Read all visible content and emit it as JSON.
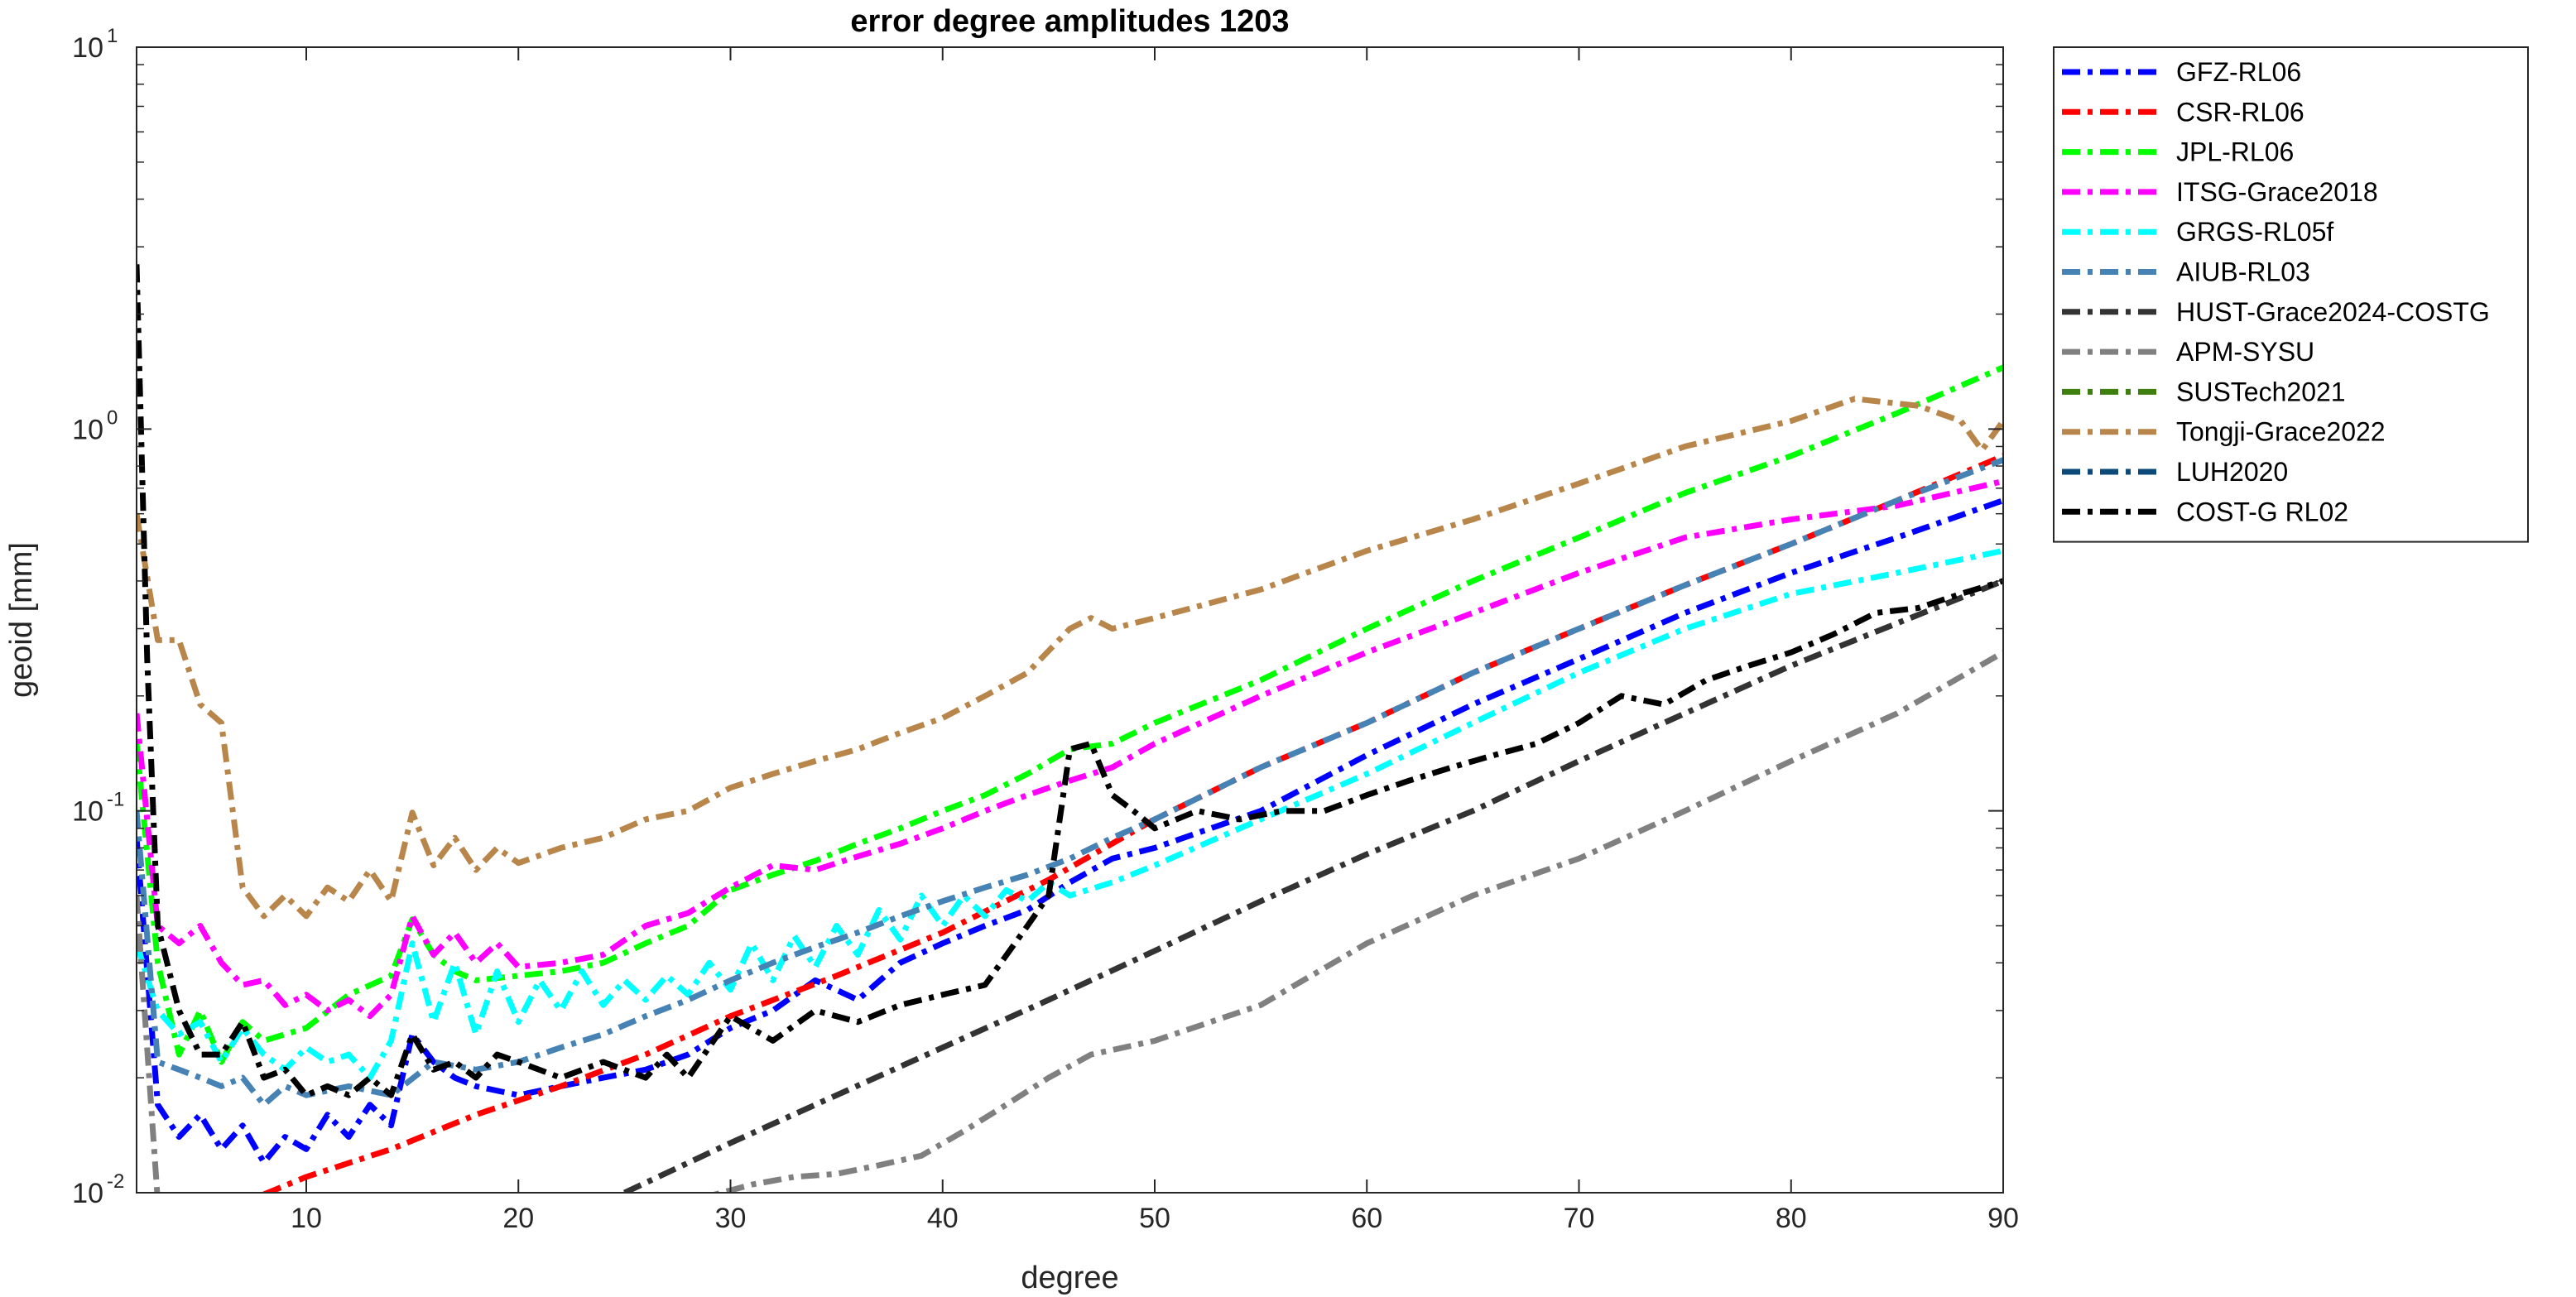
{
  "chart_data": {
    "type": "line",
    "title": "error degree amplitudes 1203",
    "xlabel": "degree",
    "ylabel": "geoid [mm]",
    "xlim": [
      2,
      90
    ],
    "ylim": [
      0.01,
      10
    ],
    "yscale": "log",
    "grid": false,
    "legend_position": "outside-top-right",
    "x_ticks": [
      10,
      20,
      30,
      40,
      50,
      60,
      70,
      80,
      90
    ],
    "y_ticks": [
      {
        "base": "10",
        "exp": "-2",
        "value": 0.01
      },
      {
        "base": "10",
        "exp": "-1",
        "value": 0.1
      },
      {
        "base": "10",
        "exp": "0",
        "value": 1
      },
      {
        "base": "10",
        "exp": "1",
        "value": 10
      }
    ],
    "series": [
      {
        "name": "GFZ-RL06",
        "color": "#0000ff",
        "dash": "dashdot",
        "x": [
          2,
          3,
          4,
          5,
          6,
          7,
          8,
          9,
          10,
          11,
          12,
          13,
          14,
          15,
          16,
          17,
          18,
          20,
          22,
          24,
          26,
          28,
          30,
          32,
          34,
          36,
          38,
          40,
          42,
          44,
          46,
          48,
          50,
          55,
          60,
          65,
          70,
          75,
          80,
          85,
          90
        ],
        "y": [
          0.085,
          0.017,
          0.014,
          0.016,
          0.013,
          0.015,
          0.012,
          0.014,
          0.013,
          0.016,
          0.014,
          0.017,
          0.015,
          0.026,
          0.022,
          0.02,
          0.019,
          0.018,
          0.019,
          0.02,
          0.021,
          0.023,
          0.027,
          0.03,
          0.036,
          0.032,
          0.04,
          0.045,
          0.05,
          0.055,
          0.065,
          0.075,
          0.08,
          0.1,
          0.14,
          0.19,
          0.25,
          0.33,
          0.42,
          0.52,
          0.65
        ]
      },
      {
        "name": "CSR-RL06",
        "color": "#ff0000",
        "dash": "dashdot",
        "x": [
          8,
          10,
          14,
          18,
          22,
          26,
          30,
          35,
          40,
          45,
          50,
          55,
          60,
          65,
          70,
          75,
          80,
          85,
          90
        ],
        "y": [
          0.0099,
          0.011,
          0.013,
          0.016,
          0.019,
          0.023,
          0.029,
          0.037,
          0.048,
          0.066,
          0.095,
          0.13,
          0.17,
          0.23,
          0.3,
          0.39,
          0.5,
          0.65,
          0.85
        ]
      },
      {
        "name": "JPL-RL06",
        "color": "#00ff00",
        "dash": "dashdot",
        "x": [
          2,
          3,
          4,
          5,
          6,
          7,
          8,
          9,
          10,
          12,
          14,
          15,
          16,
          17,
          18,
          20,
          22,
          24,
          26,
          28,
          30,
          32,
          34,
          36,
          38,
          40,
          42,
          44,
          46,
          48,
          50,
          55,
          60,
          65,
          70,
          75,
          80,
          85,
          90
        ],
        "y": [
          0.15,
          0.04,
          0.023,
          0.03,
          0.022,
          0.028,
          0.025,
          0.026,
          0.027,
          0.033,
          0.037,
          0.052,
          0.042,
          0.038,
          0.036,
          0.037,
          0.038,
          0.04,
          0.045,
          0.05,
          0.062,
          0.068,
          0.074,
          0.082,
          0.09,
          0.1,
          0.11,
          0.125,
          0.145,
          0.15,
          0.17,
          0.22,
          0.3,
          0.4,
          0.52,
          0.68,
          0.85,
          1.1,
          1.45
        ]
      },
      {
        "name": "ITSG-Grace2018",
        "color": "#ff00ff",
        "dash": "dashdot",
        "x": [
          2,
          3,
          4,
          5,
          6,
          7,
          8,
          9,
          10,
          11,
          12,
          13,
          14,
          15,
          16,
          17,
          18,
          19,
          20,
          22,
          24,
          26,
          28,
          30,
          32,
          34,
          36,
          38,
          40,
          42,
          44,
          46,
          48,
          50,
          55,
          60,
          65,
          70,
          75,
          80,
          85,
          90
        ],
        "y": [
          0.18,
          0.05,
          0.045,
          0.05,
          0.04,
          0.035,
          0.036,
          0.031,
          0.033,
          0.03,
          0.032,
          0.029,
          0.033,
          0.053,
          0.042,
          0.048,
          0.04,
          0.045,
          0.039,
          0.04,
          0.042,
          0.05,
          0.054,
          0.063,
          0.072,
          0.07,
          0.076,
          0.082,
          0.09,
          0.1,
          0.11,
          0.12,
          0.13,
          0.15,
          0.2,
          0.26,
          0.33,
          0.42,
          0.52,
          0.58,
          0.63,
          0.73
        ]
      },
      {
        "name": "GRGS-RL05f",
        "color": "#00ffff",
        "dash": "dashdot",
        "x": [
          2,
          3,
          4,
          5,
          6,
          7,
          8,
          9,
          10,
          11,
          12,
          13,
          14,
          15,
          16,
          17,
          18,
          19,
          20,
          21,
          22,
          23,
          24,
          25,
          26,
          27,
          28,
          29,
          30,
          31,
          32,
          33,
          34,
          35,
          36,
          37,
          38,
          39,
          40,
          41,
          42,
          43,
          44,
          45,
          46,
          48,
          50,
          55,
          60,
          65,
          70,
          75,
          80,
          85,
          90
        ],
        "y": [
          0.045,
          0.03,
          0.026,
          0.028,
          0.022,
          0.027,
          0.023,
          0.021,
          0.024,
          0.022,
          0.023,
          0.02,
          0.025,
          0.045,
          0.028,
          0.04,
          0.026,
          0.038,
          0.028,
          0.036,
          0.03,
          0.038,
          0.031,
          0.036,
          0.032,
          0.037,
          0.033,
          0.04,
          0.034,
          0.045,
          0.036,
          0.047,
          0.039,
          0.05,
          0.042,
          0.055,
          0.046,
          0.06,
          0.05,
          0.06,
          0.053,
          0.062,
          0.058,
          0.065,
          0.06,
          0.065,
          0.072,
          0.095,
          0.125,
          0.17,
          0.23,
          0.3,
          0.37,
          0.42,
          0.48
        ]
      },
      {
        "name": "AIUB-RL03",
        "color": "#4682b4",
        "dash": "dashdot",
        "x": [
          2,
          3,
          4,
          5,
          6,
          7,
          8,
          9,
          10,
          12,
          14,
          16,
          18,
          20,
          22,
          24,
          26,
          28,
          30,
          32,
          34,
          36,
          38,
          40,
          42,
          44,
          46,
          48,
          50,
          55,
          60,
          65,
          70,
          75,
          80,
          85,
          90
        ],
        "y": [
          0.1,
          0.022,
          0.021,
          0.02,
          0.019,
          0.02,
          0.017,
          0.019,
          0.018,
          0.019,
          0.018,
          0.022,
          0.021,
          0.022,
          0.024,
          0.026,
          0.029,
          0.032,
          0.036,
          0.04,
          0.044,
          0.048,
          0.053,
          0.058,
          0.063,
          0.068,
          0.075,
          0.085,
          0.095,
          0.13,
          0.17,
          0.23,
          0.3,
          0.39,
          0.5,
          0.65,
          0.83
        ]
      },
      {
        "name": "HUST-Grace2024-COSTG",
        "color": "#333333",
        "dash": "dashdot",
        "x": [
          25,
          30,
          35,
          40,
          45,
          50,
          55,
          60,
          65,
          70,
          75,
          80,
          85,
          90
        ],
        "y": [
          0.01,
          0.0135,
          0.018,
          0.024,
          0.032,
          0.043,
          0.058,
          0.077,
          0.1,
          0.135,
          0.18,
          0.24,
          0.31,
          0.4
        ]
      },
      {
        "name": "APM-SYSU",
        "color": "#808080",
        "dash": "dashdot",
        "x": [
          2,
          3,
          29,
          31,
          33,
          35,
          37,
          39,
          41,
          43,
          45,
          47,
          50,
          55,
          60,
          65,
          70,
          75,
          80,
          85,
          90
        ],
        "y": [
          0.06,
          0.0095,
          0.0098,
          0.0105,
          0.011,
          0.0112,
          0.0118,
          0.0125,
          0.0145,
          0.017,
          0.02,
          0.023,
          0.025,
          0.031,
          0.045,
          0.06,
          0.075,
          0.1,
          0.135,
          0.18,
          0.26
        ]
      },
      {
        "name": "SUSTech2021",
        "color": "#3f7f0f",
        "dash": "dashdot",
        "x": [],
        "y": []
      },
      {
        "name": "Tongji-Grace2022",
        "color": "#b8864b",
        "dash": "dashdot",
        "x": [
          2,
          3,
          4,
          5,
          6,
          7,
          8,
          9,
          10,
          11,
          12,
          13,
          14,
          15,
          16,
          17,
          18,
          19,
          20,
          22,
          24,
          26,
          28,
          30,
          32,
          34,
          36,
          38,
          40,
          42,
          44,
          46,
          47,
          48,
          50,
          55,
          60,
          65,
          70,
          75,
          80,
          83,
          86,
          88,
          89,
          90
        ],
        "y": [
          0.6,
          0.28,
          0.28,
          0.19,
          0.17,
          0.063,
          0.053,
          0.06,
          0.053,
          0.063,
          0.058,
          0.07,
          0.058,
          0.099,
          0.072,
          0.085,
          0.07,
          0.08,
          0.073,
          0.08,
          0.085,
          0.095,
          0.1,
          0.115,
          0.125,
          0.135,
          0.145,
          0.16,
          0.175,
          0.2,
          0.23,
          0.3,
          0.32,
          0.3,
          0.32,
          0.38,
          0.48,
          0.58,
          0.72,
          0.9,
          1.05,
          1.2,
          1.15,
          1.05,
          0.88,
          1.05
        ]
      },
      {
        "name": "LUH2020",
        "color": "#0c4a7a",
        "dash": "dashdot",
        "x": [],
        "y": []
      },
      {
        "name": "COST-G RL02",
        "color": "#000000",
        "dash": "dashdot",
        "x": [
          2,
          2.5,
          3,
          4,
          5,
          6,
          7,
          8,
          9,
          10,
          11,
          12,
          13,
          14,
          15,
          16,
          17,
          18,
          19,
          20,
          22,
          24,
          26,
          27,
          28,
          30,
          32,
          34,
          36,
          38,
          40,
          42,
          44,
          45,
          46,
          47,
          48,
          49,
          50,
          52,
          54,
          56,
          58,
          60,
          62,
          64,
          66,
          68,
          70,
          72,
          74,
          76,
          78,
          80,
          82,
          84,
          86,
          88,
          90
        ],
        "y": [
          2.7,
          0.25,
          0.05,
          0.03,
          0.023,
          0.023,
          0.028,
          0.02,
          0.021,
          0.018,
          0.019,
          0.018,
          0.02,
          0.018,
          0.026,
          0.021,
          0.022,
          0.02,
          0.023,
          0.022,
          0.02,
          0.022,
          0.02,
          0.023,
          0.02,
          0.029,
          0.025,
          0.03,
          0.028,
          0.031,
          0.033,
          0.035,
          0.05,
          0.06,
          0.145,
          0.15,
          0.11,
          0.1,
          0.09,
          0.1,
          0.095,
          0.1,
          0.1,
          0.11,
          0.12,
          0.13,
          0.14,
          0.15,
          0.17,
          0.2,
          0.19,
          0.22,
          0.24,
          0.26,
          0.29,
          0.33,
          0.34,
          0.37,
          0.4
        ]
      }
    ]
  }
}
